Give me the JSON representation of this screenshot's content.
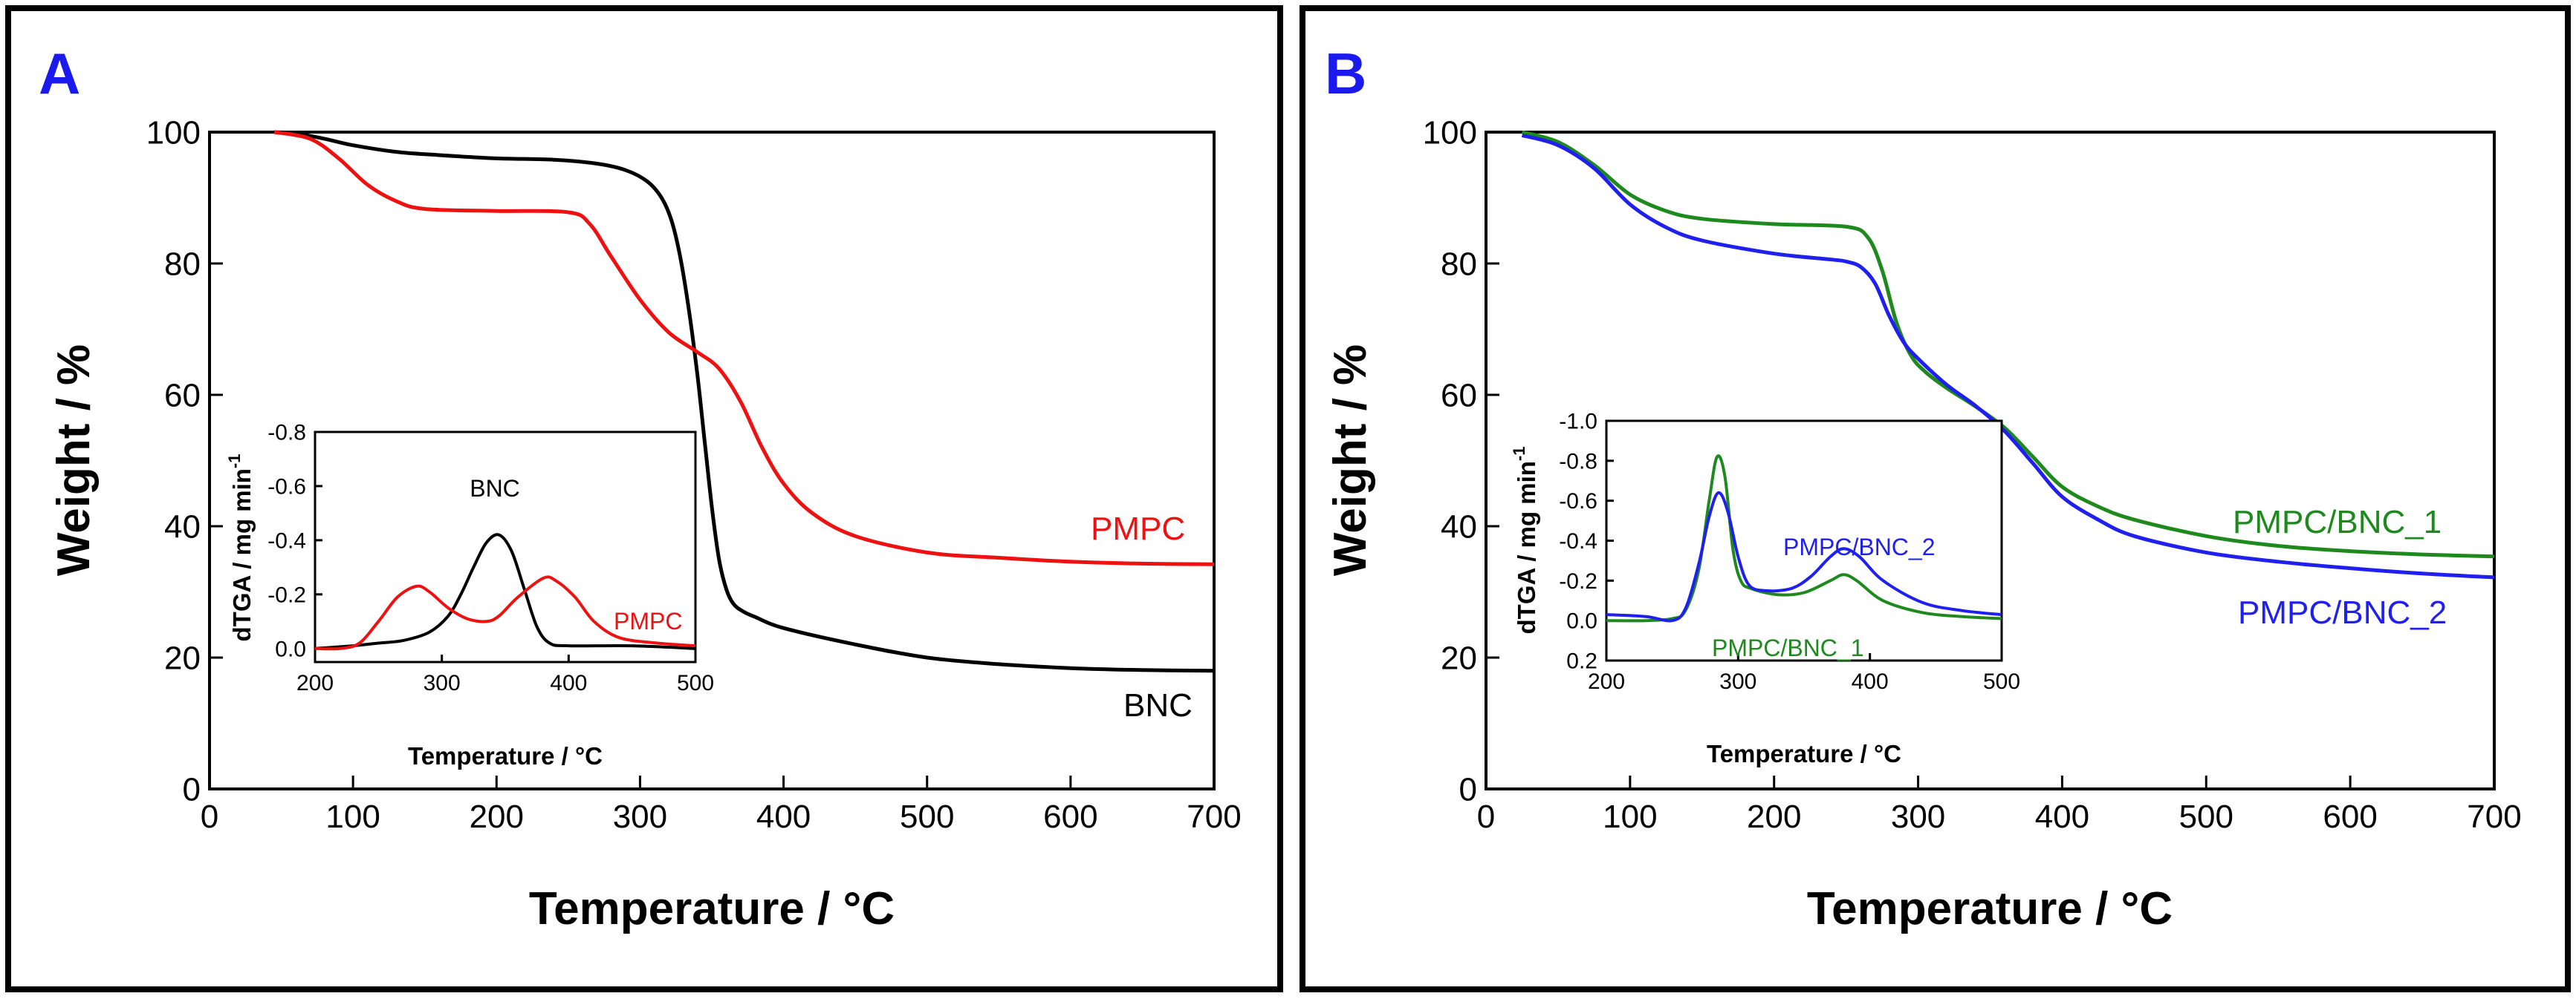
{
  "panels": {
    "A": {
      "label": "A"
    },
    "B": {
      "label": "B"
    }
  },
  "colors": {
    "panel_label": "#1a1aee",
    "black": "#000000",
    "red": "#ee1111",
    "green": "#1e8a1e",
    "blue": "#1f1fee"
  },
  "chart_data": [
    {
      "id": "A-main",
      "type": "line",
      "panel": "A",
      "xlabel": "Temperature / °C",
      "ylabel": "Weight / %",
      "xlim": [
        0,
        700
      ],
      "ylim": [
        0,
        100
      ],
      "xticks": [
        "0",
        "100",
        "200",
        "300",
        "400",
        "500",
        "600",
        "700"
      ],
      "yticks": [
        "0",
        "20",
        "40",
        "60",
        "80",
        "100"
      ],
      "grid": false,
      "series": [
        {
          "name": "BNC",
          "color": "#000000",
          "x": [
            45,
            60,
            80,
            100,
            130,
            160,
            200,
            240,
            270,
            290,
            305,
            315,
            322,
            328,
            334,
            340,
            345,
            350,
            355,
            360,
            365,
            372,
            380,
            400,
            450,
            500,
            550,
            600,
            650,
            700
          ],
          "y": [
            100,
            99.8,
            99,
            98,
            97,
            96.5,
            96,
            95.8,
            95.2,
            94.2,
            92.5,
            90,
            86.5,
            81,
            73,
            63,
            53,
            43,
            35,
            30.5,
            28.2,
            27,
            26.2,
            24.5,
            22,
            20,
            19,
            18.4,
            18.1,
            18
          ]
        },
        {
          "name": "PMPC",
          "color": "#ee1111",
          "x": [
            45,
            70,
            90,
            110,
            130,
            150,
            200,
            250,
            265,
            280,
            300,
            320,
            340,
            355,
            370,
            385,
            400,
            420,
            450,
            500,
            550,
            600,
            650,
            700
          ],
          "y": [
            100,
            99,
            96,
            92,
            89.5,
            88.3,
            88,
            87.8,
            86,
            81,
            74.5,
            69.5,
            66.5,
            64,
            59,
            52,
            46.5,
            42,
            38.5,
            36,
            35.2,
            34.6,
            34.3,
            34.2
          ]
        }
      ],
      "annotations": [
        "PMPC",
        "BNC"
      ]
    },
    {
      "id": "A-inset",
      "type": "line",
      "panel": "A",
      "xlabel": "Temperature / °C",
      "ylabel": "dTGA / mg min",
      "ylabel_superscript": "-1",
      "xlim": [
        200,
        500
      ],
      "ylim": [
        0.05,
        -0.8
      ],
      "xticks": [
        "200",
        "300",
        "400",
        "500"
      ],
      "yticks": [
        "-0.8",
        "-0.6",
        "-0.4",
        "-0.2",
        "0.0"
      ],
      "grid": false,
      "series": [
        {
          "name": "BNC",
          "color": "#000000",
          "x": [
            200,
            230,
            250,
            270,
            290,
            305,
            315,
            325,
            335,
            345,
            355,
            365,
            375,
            385,
            400,
            450,
            500
          ],
          "y": [
            0,
            -0.01,
            -0.02,
            -0.03,
            -0.06,
            -0.12,
            -0.2,
            -0.3,
            -0.39,
            -0.42,
            -0.36,
            -0.22,
            -0.08,
            -0.02,
            -0.01,
            -0.01,
            0
          ]
        },
        {
          "name": "PMPC",
          "color": "#ee1111",
          "x": [
            200,
            220,
            235,
            250,
            265,
            280,
            290,
            305,
            320,
            335,
            345,
            360,
            380,
            390,
            405,
            420,
            440,
            470,
            500
          ],
          "y": [
            0,
            0,
            -0.02,
            -0.1,
            -0.19,
            -0.23,
            -0.21,
            -0.15,
            -0.11,
            -0.1,
            -0.12,
            -0.19,
            -0.26,
            -0.25,
            -0.19,
            -0.1,
            -0.04,
            -0.02,
            -0.01
          ]
        }
      ],
      "annotations": [
        "BNC",
        "PMPC"
      ]
    },
    {
      "id": "B-main",
      "type": "line",
      "panel": "B",
      "xlabel": "Temperature / °C",
      "ylabel": "Weight / %",
      "xlim": [
        0,
        700
      ],
      "ylim": [
        0,
        100
      ],
      "xticks": [
        "0",
        "100",
        "200",
        "300",
        "400",
        "500",
        "600",
        "700"
      ],
      "yticks": [
        "0",
        "20",
        "40",
        "60",
        "80",
        "100"
      ],
      "grid": false,
      "series": [
        {
          "name": "PMPC/BNC_1",
          "color": "#1e8a1e",
          "x": [
            25,
            50,
            75,
            100,
            125,
            150,
            200,
            250,
            265,
            275,
            285,
            295,
            305,
            320,
            340,
            360,
            380,
            400,
            425,
            450,
            500,
            550,
            600,
            650,
            700
          ],
          "y": [
            100,
            98.5,
            95,
            90.5,
            88,
            86.8,
            86,
            85.6,
            84,
            79,
            71,
            66,
            63.5,
            61,
            58.2,
            55,
            50.5,
            46,
            43,
            41,
            38.5,
            37,
            36.2,
            35.7,
            35.4
          ]
        },
        {
          "name": "PMPC/BNC_2",
          "color": "#1f1fee",
          "x": [
            25,
            50,
            75,
            100,
            125,
            150,
            200,
            240,
            250,
            260,
            270,
            280,
            290,
            300,
            320,
            340,
            360,
            380,
            400,
            425,
            450,
            500,
            550,
            600,
            650,
            700
          ],
          "y": [
            99.5,
            98,
            94.5,
            89,
            85.5,
            83.5,
            81.5,
            80.6,
            80.3,
            79.5,
            77,
            72,
            68,
            65.5,
            61.5,
            58.3,
            54.5,
            49.5,
            44.5,
            41,
            38.5,
            36,
            34.6,
            33.6,
            32.8,
            32.2
          ]
        }
      ],
      "annotations": [
        "PMPC/BNC_1",
        "PMPC/BNC_2"
      ]
    },
    {
      "id": "B-inset",
      "type": "line",
      "panel": "B",
      "xlabel": "Temperature / °C",
      "ylabel": "dTGA / mg min",
      "ylabel_superscript": "-1",
      "xlim": [
        200,
        500
      ],
      "ylim": [
        0.2,
        -1.0
      ],
      "xticks": [
        "200",
        "300",
        "400",
        "500"
      ],
      "yticks": [
        "-1.0",
        "-0.8",
        "-0.6",
        "-0.4",
        "-0.2",
        "0.0",
        "0.2"
      ],
      "grid": false,
      "series": [
        {
          "name": "PMPC/BNC_1",
          "color": "#1e8a1e",
          "x": [
            200,
            230,
            250,
            260,
            270,
            278,
            284,
            290,
            296,
            302,
            310,
            330,
            350,
            370,
            380,
            390,
            410,
            440,
            470,
            500
          ],
          "y": [
            0,
            0,
            -0.01,
            -0.05,
            -0.25,
            -0.6,
            -0.82,
            -0.72,
            -0.36,
            -0.2,
            -0.16,
            -0.13,
            -0.14,
            -0.2,
            -0.23,
            -0.2,
            -0.1,
            -0.04,
            -0.02,
            -0.01
          ]
        },
        {
          "name": "PMPC/BNC_2",
          "color": "#1f1fee",
          "x": [
            200,
            230,
            250,
            260,
            270,
            278,
            285,
            292,
            300,
            308,
            320,
            340,
            355,
            370,
            380,
            392,
            410,
            440,
            470,
            500
          ],
          "y": [
            -0.03,
            -0.02,
            0,
            -0.06,
            -0.28,
            -0.52,
            -0.64,
            -0.55,
            -0.32,
            -0.18,
            -0.15,
            -0.16,
            -0.22,
            -0.32,
            -0.36,
            -0.32,
            -0.2,
            -0.09,
            -0.05,
            -0.03
          ]
        }
      ],
      "annotations": [
        "PMPC/BNC_2",
        "PMPC/BNC_1"
      ]
    }
  ]
}
